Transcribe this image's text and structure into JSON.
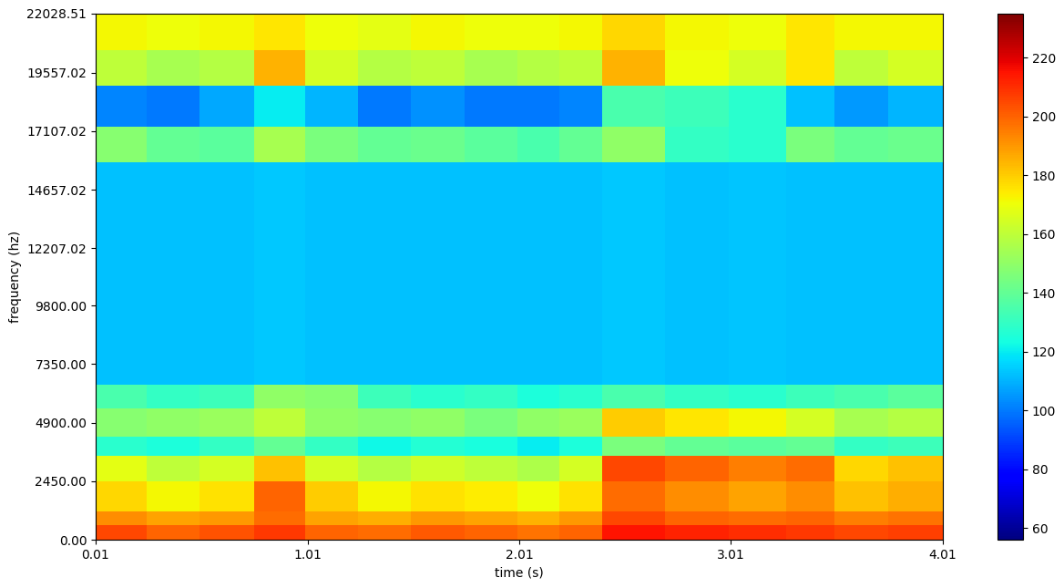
{
  "chart_data": {
    "type": "heatmap",
    "x_label": "time (s)",
    "y_label": "frequency (hz)",
    "xlim": [
      0.01,
      4.01
    ],
    "xticks": [
      0.01,
      1.01,
      2.01,
      3.01,
      4.01
    ],
    "ylim": [
      0,
      22028.51
    ],
    "yticks": [
      {
        "value": 0,
        "label": "0.00"
      },
      {
        "value": 2450,
        "label": "2450.00"
      },
      {
        "value": 4900,
        "label": "4900.00"
      },
      {
        "value": 7350,
        "label": "7350.00"
      },
      {
        "value": 9800,
        "label": "9800.00"
      },
      {
        "value": 12207.02,
        "label": "12207.02"
      },
      {
        "value": 14657.02,
        "label": "14657.02"
      },
      {
        "value": 17107.02,
        "label": "17107.02"
      },
      {
        "value": 19557.02,
        "label": "19557.02"
      },
      {
        "value": 22028.51,
        "label": "22028.51"
      }
    ],
    "color": "jet",
    "x_edges": [
      0.01,
      0.25,
      0.5,
      0.76,
      1.0,
      1.25,
      1.5,
      1.75,
      2.0,
      2.2,
      2.4,
      2.7,
      3.0,
      3.27,
      3.5,
      3.75,
      4.01
    ],
    "y_edges": [
      0,
      600,
      1200,
      2450,
      3500,
      4300,
      5500,
      6500,
      15800,
      17300,
      19000,
      20500,
      22028.51
    ],
    "cells": [
      [
        205,
        200,
        203,
        208,
        200,
        198,
        202,
        200,
        197,
        200,
        215,
        212,
        210,
        208,
        205,
        207
      ],
      [
        192,
        188,
        190,
        198,
        188,
        186,
        190,
        188,
        185,
        190,
        205,
        200,
        198,
        200,
        195,
        197
      ],
      [
        178,
        172,
        176,
        200,
        180,
        172,
        176,
        174,
        170,
        176,
        198,
        192,
        188,
        192,
        182,
        186
      ],
      [
        168,
        160,
        165,
        182,
        165,
        158,
        163,
        160,
        156,
        165,
        205,
        200,
        195,
        198,
        178,
        182
      ],
      [
        128,
        125,
        130,
        140,
        130,
        122,
        126,
        124,
        120,
        125,
        145,
        140,
        138,
        140,
        130,
        132
      ],
      [
        148,
        150,
        152,
        160,
        150,
        148,
        150,
        145,
        150,
        152,
        180,
        175,
        172,
        165,
        155,
        158
      ],
      [
        135,
        130,
        132,
        150,
        148,
        132,
        128,
        130,
        125,
        128,
        135,
        130,
        128,
        132,
        135,
        138
      ],
      [
        112,
        112,
        112,
        114,
        112,
        112,
        112,
        112,
        112,
        112,
        114,
        112,
        113,
        112,
        112,
        112
      ],
      [
        148,
        140,
        138,
        155,
        145,
        140,
        142,
        138,
        135,
        140,
        150,
        130,
        128,
        145,
        140,
        142
      ],
      [
        102,
        100,
        108,
        120,
        110,
        100,
        104,
        100,
        100,
        102,
        135,
        132,
        128,
        112,
        105,
        110
      ],
      [
        160,
        155,
        158,
        185,
        165,
        158,
        160,
        155,
        158,
        160,
        185,
        170,
        165,
        175,
        160,
        165
      ],
      [
        172,
        170,
        172,
        175,
        170,
        168,
        172,
        170,
        170,
        172,
        178,
        172,
        170,
        175,
        172,
        172
      ]
    ],
    "colorbar": {
      "range": [
        56,
        235
      ],
      "ticks": [
        60,
        80,
        100,
        120,
        140,
        160,
        180,
        200,
        220
      ]
    }
  }
}
